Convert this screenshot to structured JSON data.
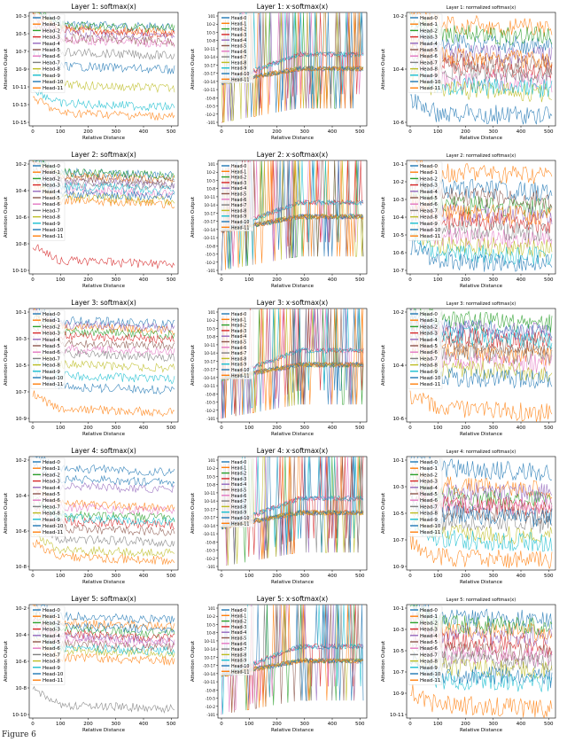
{
  "figure": {
    "caption_fragment": "Figure 6"
  },
  "palette": [
    "#1f77b4",
    "#ff7f0e",
    "#2ca02c",
    "#d62728",
    "#9467bd",
    "#8c564b",
    "#e377c2",
    "#7f7f7f",
    "#bcbd22",
    "#17becf",
    "#1f77b4",
    "#ff7f0e"
  ],
  "chart_data": [
    {
      "type": "line",
      "title": "Layer 1: softmax(x)",
      "xlabel": "Relative Distance",
      "ylabel": "Attention Output",
      "xlim": [
        0,
        512
      ],
      "xticks": [
        "0",
        "100",
        "200",
        "300",
        "400",
        "500"
      ],
      "yticks": [
        "10^-3",
        "10^-5",
        "10^-7",
        "10^-9",
        "10^-11",
        "10^-13",
        "10^-15"
      ],
      "legend": [
        "Head-0",
        "Head-1",
        "Head-2",
        "Head-3",
        "Head-4",
        "Head-5",
        "Head-6",
        "Head-7",
        "Head-8",
        "Head-9",
        "Head-10",
        "Head-11"
      ],
      "series_levels": [
        -2.5,
        -3,
        -2.6,
        -3.2,
        -3.5,
        -4,
        -4.2,
        -5.5,
        -9,
        -11,
        -7,
        -12
      ]
    },
    {
      "type": "line",
      "title": "Layer 1: x·softmax(x)",
      "xlabel": "Relative Distance",
      "ylabel": "Attention Output",
      "xlim": [
        0,
        512
      ],
      "xticks": [
        "0",
        "100",
        "200",
        "300",
        "400",
        "500"
      ],
      "yticks": [
        "10^1",
        "10^-2",
        "10^-5",
        "10^-8",
        "10^-11",
        "10^-14",
        "10^-17",
        "-10^-17",
        "-10^-14",
        "-10^-11",
        "-10^-8",
        "-10^-5",
        "-10^-2",
        "-10^1"
      ],
      "legend": [
        "Head-0",
        "Head-1",
        "Head-2",
        "Head-3",
        "Head-4",
        "Head-5",
        "Head-6",
        "Head-7",
        "Head-8",
        "Head-9",
        "Head-10",
        "Head-11"
      ],
      "series_levels": [
        0.3,
        0.3,
        0.2,
        0.3,
        0.3,
        0.3,
        0.3,
        0.3,
        0.3,
        0.3,
        0.3,
        0.3
      ]
    },
    {
      "type": "line",
      "title": "Layer 1: normalized softmax(x)",
      "xlabel": "Relative Distance",
      "ylabel": "Attention Output",
      "xlim": [
        0,
        512
      ],
      "xticks": [
        "0",
        "100",
        "200",
        "300",
        "400",
        "500"
      ],
      "yticks": [
        "10^-2",
        "10^-4",
        "10^-6"
      ],
      "legend": [
        "Head-0",
        "Head-1",
        "Head-2",
        "Head-3",
        "Head-4",
        "Head-5",
        "Head-6",
        "Head-7",
        "Head-8",
        "Head-9",
        "Head-10",
        "Head-11"
      ],
      "series_levels": [
        -3,
        -2.6,
        -2.8,
        -3.5,
        -3.2,
        -3.4,
        -3.8,
        -3.6,
        -4,
        -3.9,
        -4.5,
        -3.3
      ]
    },
    {
      "type": "line",
      "title": "Layer 2: softmax(x)",
      "xlabel": "Relative Distance",
      "ylabel": "Attention Output",
      "xlim": [
        0,
        512
      ],
      "xticks": [
        "0",
        "100",
        "200",
        "300",
        "400",
        "500"
      ],
      "yticks": [
        "10^-2",
        "10^-4",
        "10^-6",
        "10^-8",
        "10^-10"
      ],
      "legend": [
        "Head-0",
        "Head-1",
        "Head-2",
        "Head-3",
        "Head-4",
        "Head-5",
        "Head-6",
        "Head-7",
        "Head-8",
        "Head-9",
        "Head-10",
        "Head-11"
      ],
      "series_levels": [
        -3,
        -3.2,
        -3,
        -8,
        -3.5,
        -3.3,
        -4,
        -3.6,
        -4.4,
        -3.8,
        -4.2,
        -4.6
      ]
    },
    {
      "type": "line",
      "title": "Layer 2: x·softmax(x)",
      "xlabel": "Relative Distance",
      "ylabel": "Attention Output",
      "xlim": [
        0,
        512
      ],
      "xticks": [
        "0",
        "100",
        "200",
        "300",
        "400",
        "500"
      ],
      "yticks": [
        "10^1",
        "10^-2",
        "10^-5",
        "10^-8",
        "10^-11",
        "10^-14",
        "10^-17",
        "-10^-17",
        "-10^-14",
        "-10^-11",
        "-10^-8",
        "-10^-5",
        "-10^-2",
        "-10^1"
      ],
      "legend": [
        "Head-0",
        "Head-1",
        "Head-2",
        "Head-3",
        "Head-4",
        "Head-5",
        "Head-6",
        "Head-7",
        "Head-8",
        "Head-9",
        "Head-10",
        "Head-11"
      ],
      "series_levels": [
        0.3,
        0.3,
        0.3,
        0.3,
        0.3,
        0.3,
        0.3,
        0.3,
        0.3,
        0.3,
        0.3,
        0.3
      ]
    },
    {
      "type": "line",
      "title": "Layer 2: normalized softmax(x)",
      "xlabel": "Relative Distance",
      "ylabel": "Attention Output",
      "xlim": [
        0,
        512
      ],
      "xticks": [
        "0",
        "100",
        "200",
        "300",
        "400",
        "500"
      ],
      "yticks": [
        "10^-1",
        "10^-2",
        "10^-3",
        "10^-4",
        "10^-5",
        "10^-6",
        "10^-7"
      ],
      "legend": [
        "Head-0",
        "Head-1",
        "Head-2",
        "Head-3",
        "Head-4",
        "Head-5",
        "Head-6",
        "Head-7",
        "Head-8",
        "Head-9",
        "Head-10",
        "Head-11"
      ],
      "series_levels": [
        -3.2,
        -3,
        -3.4,
        -3.6,
        -3.5,
        -3.3,
        -3.8,
        -3.7,
        -3.9,
        -4,
        -4.1,
        -3.5
      ]
    },
    {
      "type": "line",
      "title": "Layer 3: softmax(x)",
      "xlabel": "Relative Distance",
      "ylabel": "Attention Output",
      "xlim": [
        0,
        512
      ],
      "xticks": [
        "0",
        "100",
        "200",
        "300",
        "400",
        "500"
      ],
      "yticks": [
        "10^-1",
        "10^-3",
        "10^-5",
        "10^-7",
        "10^-9"
      ],
      "legend": [
        "Head-0",
        "Head-1",
        "Head-2",
        "Head-3",
        "Head-4",
        "Head-5",
        "Head-6",
        "Head-7",
        "Head-8",
        "Head-9",
        "Head-10",
        "Head-11"
      ],
      "series_levels": [
        -2.5,
        -2.8,
        -3,
        -3.2,
        -2.7,
        -3.5,
        -3.8,
        -4,
        -4.5,
        -5,
        -5.5,
        -6.5
      ]
    },
    {
      "type": "line",
      "title": "Layer 3: x·softmax(x)",
      "xlabel": "Relative Distance",
      "ylabel": "Attention Output",
      "xlim": [
        0,
        512
      ],
      "xticks": [
        "0",
        "100",
        "200",
        "300",
        "400",
        "500"
      ],
      "yticks": [
        "10^1",
        "10^-2",
        "10^-5",
        "10^-8",
        "10^-11",
        "10^-14",
        "10^-17",
        "-10^-17",
        "-10^-14",
        "-10^-11",
        "-10^-8",
        "-10^-5",
        "-10^-2",
        "-10^1"
      ],
      "legend": [
        "Head-0",
        "Head-1",
        "Head-2",
        "Head-3",
        "Head-4",
        "Head-5",
        "Head-6",
        "Head-7",
        "Head-8",
        "Head-9",
        "Head-10",
        "Head-11"
      ],
      "series_levels": [
        0.3,
        0.3,
        0.3,
        0.3,
        0.3,
        0.3,
        0.3,
        0.3,
        0.3,
        0.3,
        0.3,
        0.3
      ]
    },
    {
      "type": "line",
      "title": "Layer 3: normalized softmax(x)",
      "xlabel": "Relative Distance",
      "ylabel": "Attention Output",
      "xlim": [
        0,
        512
      ],
      "xticks": [
        "0",
        "100",
        "200",
        "300",
        "400",
        "500"
      ],
      "yticks": [
        "10^-2",
        "10^-4",
        "10^-6"
      ],
      "legend": [
        "Head-0",
        "Head-1",
        "Head-2",
        "Head-3",
        "Head-4",
        "Head-5",
        "Head-6",
        "Head-7",
        "Head-8",
        "Head-9",
        "Head-10",
        "Head-11"
      ],
      "series_levels": [
        -3.5,
        -3.8,
        -3.4,
        -3.6,
        -3.5,
        -3.7,
        -3.9,
        -3.8,
        -4,
        -3.6,
        -4.1,
        -4.5
      ]
    },
    {
      "type": "line",
      "title": "Layer 4: softmax(x)",
      "xlabel": "Relative Distance",
      "ylabel": "Attention Output",
      "xlim": [
        0,
        512
      ],
      "xticks": [
        "0",
        "100",
        "200",
        "300",
        "400",
        "500"
      ],
      "yticks": [
        "10^-2",
        "10^-4",
        "10^-6",
        "10^-8"
      ],
      "legend": [
        "Head-0",
        "Head-1",
        "Head-2",
        "Head-3",
        "Head-4",
        "Head-5",
        "Head-6",
        "Head-7",
        "Head-8",
        "Head-9",
        "Head-10",
        "Head-11"
      ],
      "series_levels": [
        -3.5,
        -4.5,
        -4.8,
        -5,
        -4,
        -5.2,
        -4.6,
        -5.5,
        -5.8,
        -4.9,
        -3.8,
        -6
      ]
    },
    {
      "type": "line",
      "title": "Layer 4: x·softmax(x)",
      "xlabel": "Relative Distance",
      "ylabel": "Attention Output",
      "xlim": [
        0,
        512
      ],
      "xticks": [
        "0",
        "100",
        "200",
        "300",
        "400",
        "500"
      ],
      "yticks": [
        "10^1",
        "10^-2",
        "10^-5",
        "10^-8",
        "10^-11",
        "10^-14",
        "10^-17",
        "-10^-17",
        "-10^-14",
        "-10^-11",
        "-10^-8",
        "-10^-5",
        "-10^-2",
        "-10^1"
      ],
      "legend": [
        "Head-0",
        "Head-1",
        "Head-2",
        "Head-3",
        "Head-4",
        "Head-5",
        "Head-6",
        "Head-7",
        "Head-8",
        "Head-9",
        "Head-10",
        "Head-11"
      ],
      "series_levels": [
        0.3,
        0.3,
        0.3,
        0.3,
        0.3,
        0.3,
        0.3,
        0.3,
        0.3,
        0.3,
        0.3,
        0.3
      ]
    },
    {
      "type": "line",
      "title": "Layer 4: normalized softmax(x)",
      "xlabel": "Relative Distance",
      "ylabel": "Attention Output",
      "xlim": [
        0,
        512
      ],
      "xticks": [
        "0",
        "100",
        "200",
        "300",
        "400",
        "500"
      ],
      "yticks": [
        "10^-1",
        "10^-3",
        "10^-5",
        "10^-7",
        "10^-9"
      ],
      "legend": [
        "Head-0",
        "Head-1",
        "Head-2",
        "Head-3",
        "Head-4",
        "Head-5",
        "Head-6",
        "Head-7",
        "Head-8",
        "Head-9",
        "Head-10",
        "Head-11"
      ],
      "series_levels": [
        -4,
        -4.5,
        -4.8,
        -5,
        -4.6,
        -5.2,
        -5,
        -5.5,
        -5.8,
        -6,
        -5.3,
        -6.5
      ]
    },
    {
      "type": "line",
      "title": "Layer 5: softmax(x)",
      "xlabel": "Relative Distance",
      "ylabel": "Attention Output",
      "xlim": [
        0,
        512
      ],
      "xticks": [
        "0",
        "100",
        "200",
        "300",
        "400",
        "500"
      ],
      "yticks": [
        "10^-2",
        "10^-4",
        "10^-6",
        "10^-8",
        "10^-10"
      ],
      "legend": [
        "Head-0",
        "Head-1",
        "Head-2",
        "Head-3",
        "Head-4",
        "Head-5",
        "Head-6",
        "Head-7",
        "Head-8",
        "Head-9",
        "Head-10",
        "Head-11"
      ],
      "series_levels": [
        -2.5,
        -3,
        -3.5,
        -3.8,
        -4,
        -4.5,
        -4.2,
        -9,
        -5,
        -4.8,
        -3.2,
        -5.5
      ]
    },
    {
      "type": "line",
      "title": "Layer 5: x·softmax(x)",
      "xlabel": "Relative Distance",
      "ylabel": "Attention Output",
      "xlim": [
        0,
        512
      ],
      "xticks": [
        "0",
        "100",
        "200",
        "300",
        "400",
        "500"
      ],
      "yticks": [
        "10^1",
        "10^-2",
        "10^-5",
        "10^-8",
        "10^-11",
        "10^-14",
        "10^-17",
        "-10^-17",
        "-10^-14",
        "-10^-11",
        "-10^-8",
        "-10^-5",
        "-10^-2",
        "-10^1"
      ],
      "legend": [
        "Head-0",
        "Head-1",
        "Head-2",
        "Head-3",
        "Head-4",
        "Head-5",
        "Head-6",
        "Head-7",
        "Head-8",
        "Head-9",
        "Head-10",
        "Head-11"
      ],
      "series_levels": [
        0.3,
        0.3,
        0.3,
        0.3,
        0.3,
        0.3,
        0.3,
        0.3,
        0.3,
        0.3,
        0.3,
        0.3
      ]
    },
    {
      "type": "line",
      "title": "Layer 5: normalized softmax(x)",
      "xlabel": "Relative Distance",
      "ylabel": "Attention Output",
      "xlim": [
        0,
        512
      ],
      "xticks": [
        "0",
        "100",
        "200",
        "300",
        "400",
        "500"
      ],
      "yticks": [
        "10^-1",
        "10^-3",
        "10^-5",
        "10^-7",
        "10^-9",
        "10^-11"
      ],
      "legend": [
        "Head-0",
        "Head-1",
        "Head-2",
        "Head-3",
        "Head-4",
        "Head-5",
        "Head-6",
        "Head-7",
        "Head-8",
        "Head-9",
        "Head-10",
        "Head-11"
      ],
      "series_levels": [
        -3.5,
        -4,
        -3.8,
        -4.5,
        -4.2,
        -4.8,
        -5,
        -5.2,
        -5.5,
        -6,
        -5.8,
        -7
      ]
    }
  ]
}
